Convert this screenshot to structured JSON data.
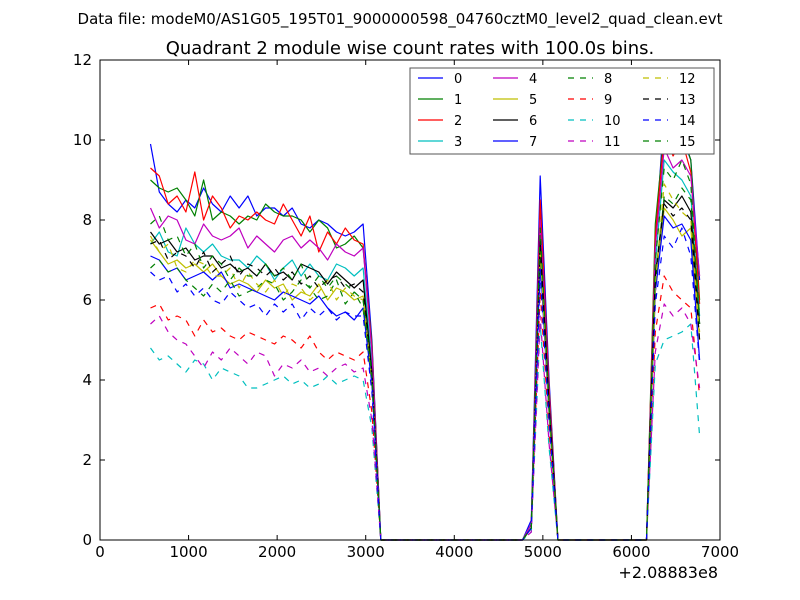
{
  "chart_data": {
    "type": "line",
    "suptitle": "Data file: modeM0/AS1G05_195T01_9000000598_04760cztM0_level2_quad_clean.evt",
    "title": "Quadrant 2 module wise count rates with 100.0s bins.",
    "xlabel": "",
    "ylabel": "",
    "x_offset_label": "+2.08883e8",
    "xlim": [
      0,
      7000
    ],
    "ylim": [
      0,
      12
    ],
    "x_ticks": [
      0,
      1000,
      2000,
      3000,
      4000,
      5000,
      6000,
      7000
    ],
    "y_ticks": [
      0,
      2,
      4,
      6,
      8,
      10,
      12
    ],
    "x_tick_labels": [
      "0",
      "1000",
      "2000",
      "3000",
      "4000",
      "5000",
      "6000",
      "7000"
    ],
    "y_tick_labels": [
      "0",
      "2",
      "4",
      "6",
      "8",
      "10",
      "12"
    ],
    "legend_position": "top-right",
    "x": [
      570,
      670,
      770,
      870,
      970,
      1070,
      1170,
      1270,
      1370,
      1470,
      1570,
      1670,
      1770,
      1870,
      1970,
      2070,
      2170,
      2270,
      2370,
      2470,
      2570,
      2670,
      2770,
      2870,
      2970,
      3070,
      3170,
      3270,
      4770,
      4870,
      4970,
      5070,
      5170,
      6170,
      6270,
      6370,
      6470,
      6570,
      6670,
      6770
    ],
    "series": [
      {
        "name": "0",
        "color": "#0000ff",
        "dash": "solid",
        "values": [
          9.9,
          8.7,
          8.4,
          8.2,
          8.5,
          8.3,
          8.8,
          8.4,
          8.2,
          8.6,
          8.3,
          8.6,
          8.1,
          8.3,
          8.3,
          8.1,
          8.3,
          7.9,
          7.8,
          8.0,
          7.9,
          7.7,
          7.6,
          7.7,
          7.9,
          5.0,
          0,
          0,
          0,
          0.5,
          9.1,
          4.0,
          0,
          0,
          7.4,
          10.7,
          10.6,
          10.1,
          9.5,
          6.5
        ]
      },
      {
        "name": "1",
        "color": "#008000",
        "dash": "solid",
        "values": [
          9.0,
          8.8,
          8.7,
          8.8,
          8.5,
          8.1,
          9.0,
          8.0,
          8.2,
          8.1,
          7.9,
          8.1,
          8.0,
          8.4,
          8.2,
          8.1,
          8.1,
          8.0,
          7.7,
          8.0,
          7.8,
          7.3,
          7.4,
          7.6,
          7.3,
          4.9,
          0,
          0,
          0,
          0.4,
          8.3,
          3.8,
          0,
          0,
          7.9,
          10.2,
          10.0,
          10.2,
          9.5,
          6.0
        ]
      },
      {
        "name": "2",
        "color": "#ff0000",
        "dash": "solid",
        "values": [
          9.3,
          9.1,
          8.4,
          8.6,
          8.2,
          9.2,
          8.0,
          8.6,
          8.3,
          7.8,
          8.1,
          8.0,
          8.2,
          8.0,
          7.9,
          8.4,
          8.0,
          7.6,
          8.1,
          7.2,
          7.7,
          7.4,
          7.8,
          7.5,
          7.4,
          4.8,
          0,
          0,
          0,
          0.4,
          8.5,
          3.8,
          0,
          0,
          7.6,
          10.1,
          9.6,
          10.0,
          9.2,
          5.9
        ]
      },
      {
        "name": "3",
        "color": "#00bfbf",
        "dash": "solid",
        "values": [
          7.4,
          7.7,
          7.2,
          7.1,
          7.8,
          7.4,
          7.2,
          7.4,
          7.1,
          7.0,
          7.0,
          6.8,
          7.1,
          6.9,
          6.5,
          6.8,
          7.0,
          6.6,
          6.9,
          6.6,
          6.5,
          6.9,
          6.8,
          6.6,
          6.8,
          4.4,
          0,
          0,
          0,
          0.4,
          7.6,
          3.4,
          0,
          0,
          6.9,
          9.5,
          9.2,
          9.0,
          8.6,
          5.6
        ]
      },
      {
        "name": "4",
        "color": "#bf00bf",
        "dash": "solid",
        "values": [
          8.3,
          7.8,
          8.1,
          8.0,
          7.5,
          7.4,
          7.9,
          7.6,
          7.5,
          7.6,
          7.8,
          7.3,
          7.6,
          7.4,
          7.2,
          7.5,
          7.6,
          7.3,
          7.5,
          7.3,
          7.0,
          7.4,
          7.2,
          7.1,
          7.3,
          4.7,
          0,
          0,
          0,
          0.4,
          8.0,
          3.6,
          0,
          0,
          7.3,
          9.8,
          9.3,
          9.5,
          9.1,
          6.6
        ]
      },
      {
        "name": "5",
        "color": "#bfbf00",
        "dash": "solid",
        "values": [
          7.5,
          7.2,
          6.9,
          7.0,
          6.8,
          6.9,
          6.7,
          6.9,
          6.6,
          6.4,
          6.5,
          6.4,
          6.2,
          6.5,
          6.3,
          6.4,
          6.0,
          6.2,
          6.1,
          6.4,
          6.0,
          6.3,
          6.2,
          6.0,
          6.1,
          4.0,
          0,
          0,
          0,
          0.3,
          7.2,
          3.2,
          0,
          0,
          6.2,
          8.3,
          8.0,
          7.6,
          7.8,
          5.0
        ]
      },
      {
        "name": "6",
        "color": "#000000",
        "dash": "solid",
        "values": [
          7.7,
          7.4,
          7.5,
          7.2,
          7.3,
          7.0,
          7.1,
          7.1,
          6.8,
          6.9,
          6.7,
          6.8,
          6.6,
          6.9,
          6.6,
          6.7,
          6.5,
          6.9,
          6.8,
          6.7,
          6.4,
          6.7,
          6.5,
          6.3,
          6.5,
          4.2,
          0,
          0,
          0,
          0.3,
          7.5,
          3.4,
          0,
          0,
          6.6,
          8.5,
          8.3,
          8.6,
          8.2,
          5.4
        ]
      },
      {
        "name": "7",
        "color": "#0000ff",
        "dash": "solid",
        "values": [
          7.1,
          7.0,
          6.7,
          6.8,
          6.5,
          6.6,
          6.7,
          6.5,
          6.7,
          6.3,
          6.4,
          6.3,
          6.2,
          6.1,
          6.0,
          6.2,
          6.1,
          6.0,
          5.9,
          6.1,
          5.8,
          5.6,
          5.7,
          5.5,
          5.8,
          3.9,
          0,
          0,
          0,
          0.3,
          7.0,
          3.1,
          0,
          0,
          6.2,
          8.1,
          7.8,
          7.9,
          7.5,
          4.5
        ]
      },
      {
        "name": "8",
        "color": "#008000",
        "dash": "dashed",
        "values": [
          6.8,
          7.0,
          6.7,
          6.8,
          6.5,
          6.3,
          6.1,
          6.4,
          6.2,
          6.5,
          6.1,
          6.2,
          6.3,
          6.5,
          6.4,
          6.0,
          6.2,
          6.5,
          6.3,
          6.0,
          6.1,
          6.5,
          5.9,
          6.2,
          5.8,
          3.9,
          0,
          0,
          0,
          0.3,
          7.2,
          3.2,
          0,
          0,
          6.4,
          8.6,
          8.4,
          8.8,
          8.5,
          5.6
        ]
      },
      {
        "name": "9",
        "color": "#ff0000",
        "dash": "dashed",
        "values": [
          5.8,
          5.9,
          5.5,
          5.6,
          5.5,
          5.1,
          5.5,
          5.2,
          5.3,
          5.1,
          5.0,
          5.2,
          5.1,
          5.0,
          4.9,
          5.1,
          5.0,
          4.8,
          5.1,
          4.7,
          4.5,
          4.7,
          4.6,
          4.5,
          4.7,
          3.2,
          0,
          0,
          0,
          0.3,
          6.2,
          2.7,
          0,
          0,
          5.2,
          6.6,
          6.2,
          6.0,
          5.8,
          3.6
        ]
      },
      {
        "name": "10",
        "color": "#00bfbf",
        "dash": "dashed",
        "values": [
          4.8,
          4.5,
          4.6,
          4.4,
          4.2,
          4.5,
          4.4,
          4.0,
          4.3,
          4.2,
          4.1,
          3.8,
          3.8,
          3.9,
          4.0,
          4.1,
          3.9,
          4.0,
          3.8,
          3.9,
          4.1,
          3.9,
          4.0,
          4.1,
          4.0,
          2.8,
          0,
          0,
          0,
          0.2,
          5.4,
          2.3,
          0,
          0,
          4.4,
          5.0,
          5.1,
          5.2,
          5.4,
          2.6
        ]
      },
      {
        "name": "11",
        "color": "#bf00bf",
        "dash": "dashed",
        "values": [
          5.4,
          5.6,
          5.2,
          5.0,
          4.9,
          4.6,
          4.3,
          4.7,
          4.5,
          4.8,
          4.6,
          4.4,
          4.7,
          4.6,
          4.1,
          4.4,
          4.3,
          4.5,
          4.2,
          4.3,
          4.1,
          4.3,
          4.4,
          4.2,
          4.3,
          3.0,
          0,
          0,
          0,
          0.2,
          5.6,
          2.4,
          0,
          0,
          4.7,
          5.9,
          5.6,
          5.8,
          5.4,
          3.8
        ]
      },
      {
        "name": "12",
        "color": "#bfbf00",
        "dash": "dashed",
        "values": [
          7.6,
          7.2,
          7.4,
          6.8,
          6.7,
          7.0,
          6.9,
          6.6,
          6.6,
          6.8,
          6.3,
          6.7,
          6.4,
          6.2,
          6.5,
          6.1,
          6.4,
          6.3,
          6.0,
          6.2,
          6.5,
          6.0,
          6.3,
          6.1,
          6.0,
          4.0,
          0,
          0,
          0,
          0.3,
          7.3,
          3.2,
          0,
          0,
          6.4,
          8.9,
          8.5,
          8.2,
          8.0,
          5.2
        ]
      },
      {
        "name": "13",
        "color": "#000000",
        "dash": "dashed",
        "values": [
          7.4,
          7.5,
          7.0,
          7.2,
          7.1,
          6.8,
          7.2,
          6.7,
          6.9,
          7.1,
          6.6,
          6.9,
          6.8,
          6.6,
          6.8,
          6.5,
          6.7,
          6.4,
          6.6,
          6.3,
          6.5,
          6.6,
          6.3,
          6.4,
          6.2,
          4.1,
          0,
          0,
          0,
          0.3,
          7.4,
          3.3,
          0,
          0,
          6.6,
          8.4,
          8.1,
          8.3,
          8.0,
          5.0
        ]
      },
      {
        "name": "14",
        "color": "#0000ff",
        "dash": "dashed",
        "values": [
          6.7,
          6.5,
          6.6,
          6.2,
          6.4,
          6.1,
          6.3,
          6.0,
          5.9,
          6.2,
          6.0,
          5.8,
          5.9,
          5.6,
          5.9,
          5.7,
          5.9,
          5.5,
          5.8,
          5.6,
          5.8,
          5.5,
          5.7,
          5.6,
          5.6,
          3.7,
          0,
          0,
          0,
          0.3,
          6.6,
          3.0,
          0,
          0,
          5.9,
          7.6,
          7.3,
          7.8,
          7.1,
          4.4
        ]
      },
      {
        "name": "15",
        "color": "#008000",
        "dash": "dashed",
        "values": [
          7.9,
          8.1,
          7.5,
          7.6,
          7.1,
          7.4,
          6.8,
          7.1,
          6.9,
          6.5,
          6.8,
          6.6,
          6.6,
          6.9,
          6.6,
          6.8,
          6.5,
          6.9,
          6.3,
          6.6,
          6.3,
          6.6,
          6.4,
          6.2,
          6.0,
          4.1,
          0,
          0,
          0,
          0.3,
          7.8,
          3.4,
          0,
          0,
          7.0,
          9.3,
          9.0,
          9.5,
          8.9,
          5.4
        ]
      }
    ]
  }
}
